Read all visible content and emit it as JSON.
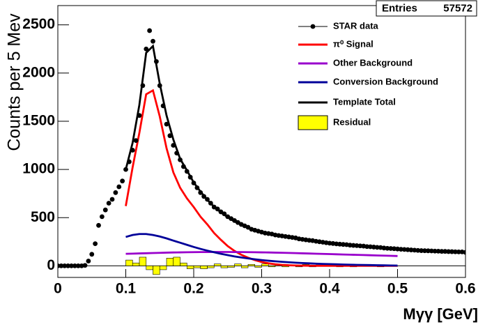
{
  "chart_data": {
    "type": "line",
    "y_label": "Counts per 5 Mev",
    "x_label": "Mγγ [GeV]",
    "stats": {
      "label": "Entries",
      "value": 57572
    },
    "xlim": [
      0,
      0.6
    ],
    "ylim": [
      -120,
      2700
    ],
    "xticks": [
      0,
      0.1,
      0.2,
      0.3,
      0.4,
      0.5,
      0.6
    ],
    "yticks": [
      0,
      500,
      1000,
      1500,
      2000,
      2500
    ],
    "legend": "upper right",
    "series": [
      {
        "name": "STAR data",
        "type": "scatter",
        "color": "#000000",
        "x": [
          0,
          0.005,
          0.01,
          0.015,
          0.02,
          0.025,
          0.03,
          0.035,
          0.04,
          0.045,
          0.05,
          0.055,
          0.06,
          0.065,
          0.07,
          0.075,
          0.08,
          0.085,
          0.09,
          0.095,
          0.1,
          0.105,
          0.11,
          0.115,
          0.12,
          0.125,
          0.13,
          0.135,
          0.14,
          0.145,
          0.15,
          0.155,
          0.16,
          0.165,
          0.17,
          0.175,
          0.18,
          0.185,
          0.19,
          0.195,
          0.2,
          0.205,
          0.21,
          0.215,
          0.22,
          0.225,
          0.23,
          0.235,
          0.24,
          0.245,
          0.25,
          0.255,
          0.26,
          0.265,
          0.27,
          0.275,
          0.28,
          0.285,
          0.29,
          0.295,
          0.3,
          0.305,
          0.31,
          0.315,
          0.32,
          0.325,
          0.33,
          0.335,
          0.34,
          0.345,
          0.35,
          0.355,
          0.36,
          0.365,
          0.37,
          0.375,
          0.38,
          0.385,
          0.39,
          0.395,
          0.4,
          0.405,
          0.41,
          0.415,
          0.42,
          0.425,
          0.43,
          0.435,
          0.44,
          0.445,
          0.45,
          0.455,
          0.46,
          0.465,
          0.47,
          0.475,
          0.48,
          0.485,
          0.49,
          0.495,
          0.5,
          0.505,
          0.51,
          0.515,
          0.52,
          0.525,
          0.53,
          0.535,
          0.54,
          0.545,
          0.55,
          0.555,
          0.56,
          0.565,
          0.57,
          0.575,
          0.58,
          0.585,
          0.59,
          0.595,
          0.6
        ],
        "values": [
          0,
          0,
          0,
          0,
          0,
          0,
          0,
          0,
          5,
          50,
          120,
          230,
          420,
          510,
          580,
          650,
          690,
          760,
          820,
          880,
          1000,
          1080,
          1200,
          1300,
          1560,
          1870,
          2250,
          2440,
          2330,
          2120,
          1870,
          1660,
          1470,
          1350,
          1250,
          1170,
          1100,
          1030,
          980,
          920,
          860,
          810,
          760,
          720,
          690,
          650,
          610,
          590,
          560,
          540,
          510,
          490,
          470,
          450,
          430,
          415,
          400,
          380,
          370,
          360,
          350,
          340,
          335,
          330,
          320,
          315,
          310,
          305,
          300,
          295,
          290,
          280,
          275,
          270,
          265,
          262,
          255,
          250,
          245,
          240,
          235,
          232,
          228,
          225,
          222,
          220,
          215,
          212,
          210,
          207,
          205,
          200,
          198,
          195,
          192,
          190,
          185,
          182,
          180,
          178,
          175,
          172,
          170,
          168,
          165,
          163,
          160,
          158,
          157,
          156,
          155,
          153,
          152,
          150,
          150,
          148,
          147,
          146,
          145,
          145,
          140
        ]
      },
      {
        "name": "π⁰ Signal",
        "type": "line",
        "color": "#ff0000",
        "x": [
          0.1,
          0.11,
          0.12,
          0.13,
          0.14,
          0.15,
          0.16,
          0.17,
          0.18,
          0.19,
          0.2,
          0.21,
          0.22,
          0.23,
          0.24,
          0.25,
          0.26,
          0.27,
          0.28,
          0.29,
          0.3,
          0.31,
          0.32,
          0.33,
          0.34,
          0.35,
          0.36,
          0.37,
          0.38,
          0.39,
          0.4,
          0.41,
          0.42,
          0.43,
          0.44,
          0.45,
          0.46,
          0.47,
          0.48,
          0.49,
          0.5
        ],
        "values": [
          620,
          1020,
          1380,
          1780,
          1820,
          1550,
          1220,
          970,
          810,
          700,
          610,
          510,
          430,
          340,
          270,
          205,
          155,
          115,
          85,
          60,
          40,
          26,
          16,
          10,
          6,
          4,
          2,
          1,
          0,
          0,
          0,
          0,
          0,
          0,
          0,
          0,
          0,
          0,
          0,
          0,
          0
        ]
      },
      {
        "name": "Other Background",
        "type": "line",
        "color": "#9900cc",
        "x": [
          0.1,
          0.11,
          0.12,
          0.13,
          0.14,
          0.15,
          0.16,
          0.17,
          0.18,
          0.19,
          0.2,
          0.21,
          0.22,
          0.23,
          0.24,
          0.25,
          0.26,
          0.27,
          0.28,
          0.29,
          0.3,
          0.31,
          0.32,
          0.33,
          0.34,
          0.35,
          0.36,
          0.37,
          0.38,
          0.39,
          0.4,
          0.41,
          0.42,
          0.43,
          0.44,
          0.45,
          0.46,
          0.47,
          0.48,
          0.49,
          0.5
        ],
        "values": [
          125,
          127,
          129,
          131,
          133,
          135,
          137,
          139,
          140,
          141,
          142,
          143,
          143,
          144,
          144,
          144,
          143,
          143,
          142,
          141,
          140,
          139,
          137,
          136,
          134,
          132,
          130,
          128,
          126,
          124,
          122,
          120,
          118,
          116,
          114,
          112,
          110,
          108,
          106,
          104,
          102
        ]
      },
      {
        "name": "Conversion Background",
        "type": "line",
        "color": "#000099",
        "x": [
          0.1,
          0.11,
          0.12,
          0.13,
          0.14,
          0.15,
          0.16,
          0.17,
          0.18,
          0.19,
          0.2,
          0.21,
          0.22,
          0.23,
          0.24,
          0.25,
          0.26,
          0.27,
          0.28,
          0.29,
          0.3,
          0.31,
          0.32,
          0.33,
          0.34,
          0.35,
          0.36,
          0.37,
          0.38,
          0.39,
          0.4,
          0.41,
          0.42,
          0.43,
          0.44,
          0.45,
          0.46,
          0.47,
          0.48,
          0.49,
          0.5
        ],
        "values": [
          300,
          320,
          330,
          330,
          320,
          305,
          285,
          262,
          240,
          218,
          196,
          176,
          158,
          141,
          125,
          111,
          98,
          87,
          77,
          68,
          60,
          53,
          47,
          42,
          37,
          33,
          29,
          26,
          23,
          20,
          18,
          16,
          14,
          12,
          10,
          9,
          8,
          6,
          5,
          4,
          3
        ]
      },
      {
        "name": "Template Total",
        "type": "line",
        "color": "#000000",
        "x": [
          0.1,
          0.11,
          0.12,
          0.13,
          0.14,
          0.15,
          0.16,
          0.17,
          0.18,
          0.19,
          0.2,
          0.21,
          0.22,
          0.23,
          0.24,
          0.25,
          0.26,
          0.27,
          0.28,
          0.29,
          0.3,
          0.31,
          0.32,
          0.33,
          0.34,
          0.35,
          0.36,
          0.37,
          0.38,
          0.39,
          0.4,
          0.41,
          0.42,
          0.43,
          0.44,
          0.45,
          0.46,
          0.47,
          0.48,
          0.49,
          0.5
        ],
        "values": [
          1000,
          1275,
          1670,
          2210,
          2280,
          1890,
          1560,
          1310,
          1110,
          990,
          865,
          770,
          685,
          612,
          555,
          505,
          461,
          425,
          396,
          367,
          346,
          332,
          319,
          306,
          294,
          281,
          271,
          260,
          249,
          239,
          230,
          224,
          218,
          212,
          207,
          202,
          196,
          190,
          184,
          178,
          173
        ]
      },
      {
        "name": "Residual",
        "type": "histogram",
        "color": "#ffff00",
        "bins": [
          0.1,
          0.11,
          0.12,
          0.13,
          0.14,
          0.15,
          0.16,
          0.17,
          0.18,
          0.19,
          0.2,
          0.21,
          0.22,
          0.23,
          0.24,
          0.25,
          0.26,
          0.27,
          0.28,
          0.29,
          0.3,
          0.31,
          0.32,
          0.33,
          0.34,
          0.35,
          0.36,
          0.37,
          0.38,
          0.39,
          0.4,
          0.41,
          0.42,
          0.43,
          0.44,
          0.45,
          0.46,
          0.47,
          0.48,
          0.49,
          0.5
        ],
        "values": [
          60,
          30,
          90,
          -40,
          -90,
          -40,
          80,
          90,
          30,
          -30,
          -20,
          -30,
          -20,
          20,
          -20,
          -15,
          20,
          -20,
          15,
          -15,
          20,
          -10,
          15,
          -10,
          10,
          -10,
          15,
          -10,
          10,
          -5,
          10,
          -10,
          5,
          -10,
          10,
          -5,
          5,
          -10,
          5,
          -5
        ]
      }
    ]
  }
}
